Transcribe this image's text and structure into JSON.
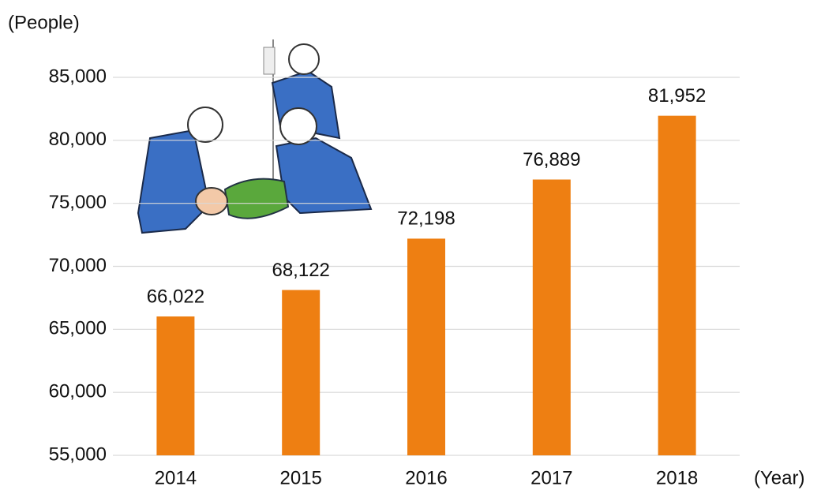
{
  "chart_data": {
    "type": "bar",
    "y_axis_label": "(People)",
    "x_axis_label": "(Year)",
    "categories": [
      "2014",
      "2015",
      "2016",
      "2017",
      "2018"
    ],
    "values": [
      66022,
      68122,
      72198,
      76889,
      81952
    ],
    "value_labels": [
      "66,022",
      "68,122",
      "72,198",
      "76,889",
      "81,952"
    ],
    "color": "#ee7f12",
    "ylim": [
      55000,
      85000
    ],
    "yticks": [
      {
        "value": 55000,
        "label": "55,000"
      },
      {
        "value": 60000,
        "label": "60,000"
      },
      {
        "value": 65000,
        "label": "65,000"
      },
      {
        "value": 70000,
        "label": "70,000"
      },
      {
        "value": 75000,
        "label": "75,000"
      },
      {
        "value": 80000,
        "label": "80,000"
      },
      {
        "value": 85000,
        "label": "85,000"
      }
    ],
    "grid": true
  }
}
